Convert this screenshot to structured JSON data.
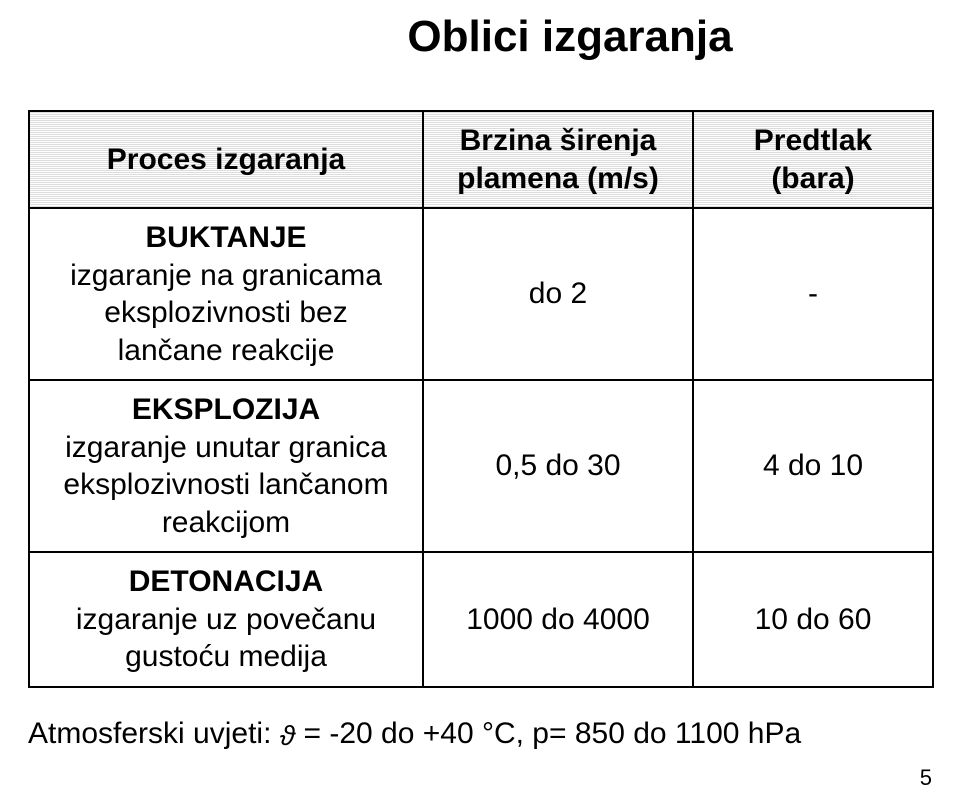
{
  "title": "Oblici izgaranja",
  "columns": {
    "c1": "Proces izgaranja",
    "c2_l1": "Brzina širenja",
    "c2_l2": "plamena (m/s)",
    "c3_l1": "Predtlak",
    "c3_l2": "(bara)"
  },
  "rows": [
    {
      "head_top": "BUKTANJE",
      "head_rest_l1": "izgaranje na granicama",
      "head_rest_l2": "eksplozivnosti bez",
      "head_rest_l3": "lančane reakcije",
      "speed": "do 2",
      "pressure": "-"
    },
    {
      "head_top": "EKSPLOZIJA",
      "head_rest_l1": "izgaranje unutar granica",
      "head_rest_l2": "eksplozivnosti lančanom",
      "head_rest_l3": "reakcijom",
      "speed": "0,5 do 30",
      "pressure": "4 do 10"
    },
    {
      "head_top": "DETONACIJA",
      "head_rest_l1": "izgaranje uz povečanu",
      "head_rest_l2": "gustoću medija",
      "head_rest_l3": "",
      "speed": "1000 do 4000",
      "pressure": "10 do 60"
    }
  ],
  "footer": {
    "prefix": "Atmosferski uvjeti: ",
    "theta": "ϑ",
    "mid": " = -20 do +40 °C,   p= 850 do 1100 hPa"
  },
  "slide_number": "5",
  "colors": {
    "text": "#000000",
    "bg": "#ffffff",
    "border": "#000000",
    "hatch_dark": "#dcdcdc",
    "hatch_light": "#ffffff"
  },
  "fontsize": {
    "title": 44,
    "cell": 30,
    "footer": 30,
    "slidenum": 22
  }
}
